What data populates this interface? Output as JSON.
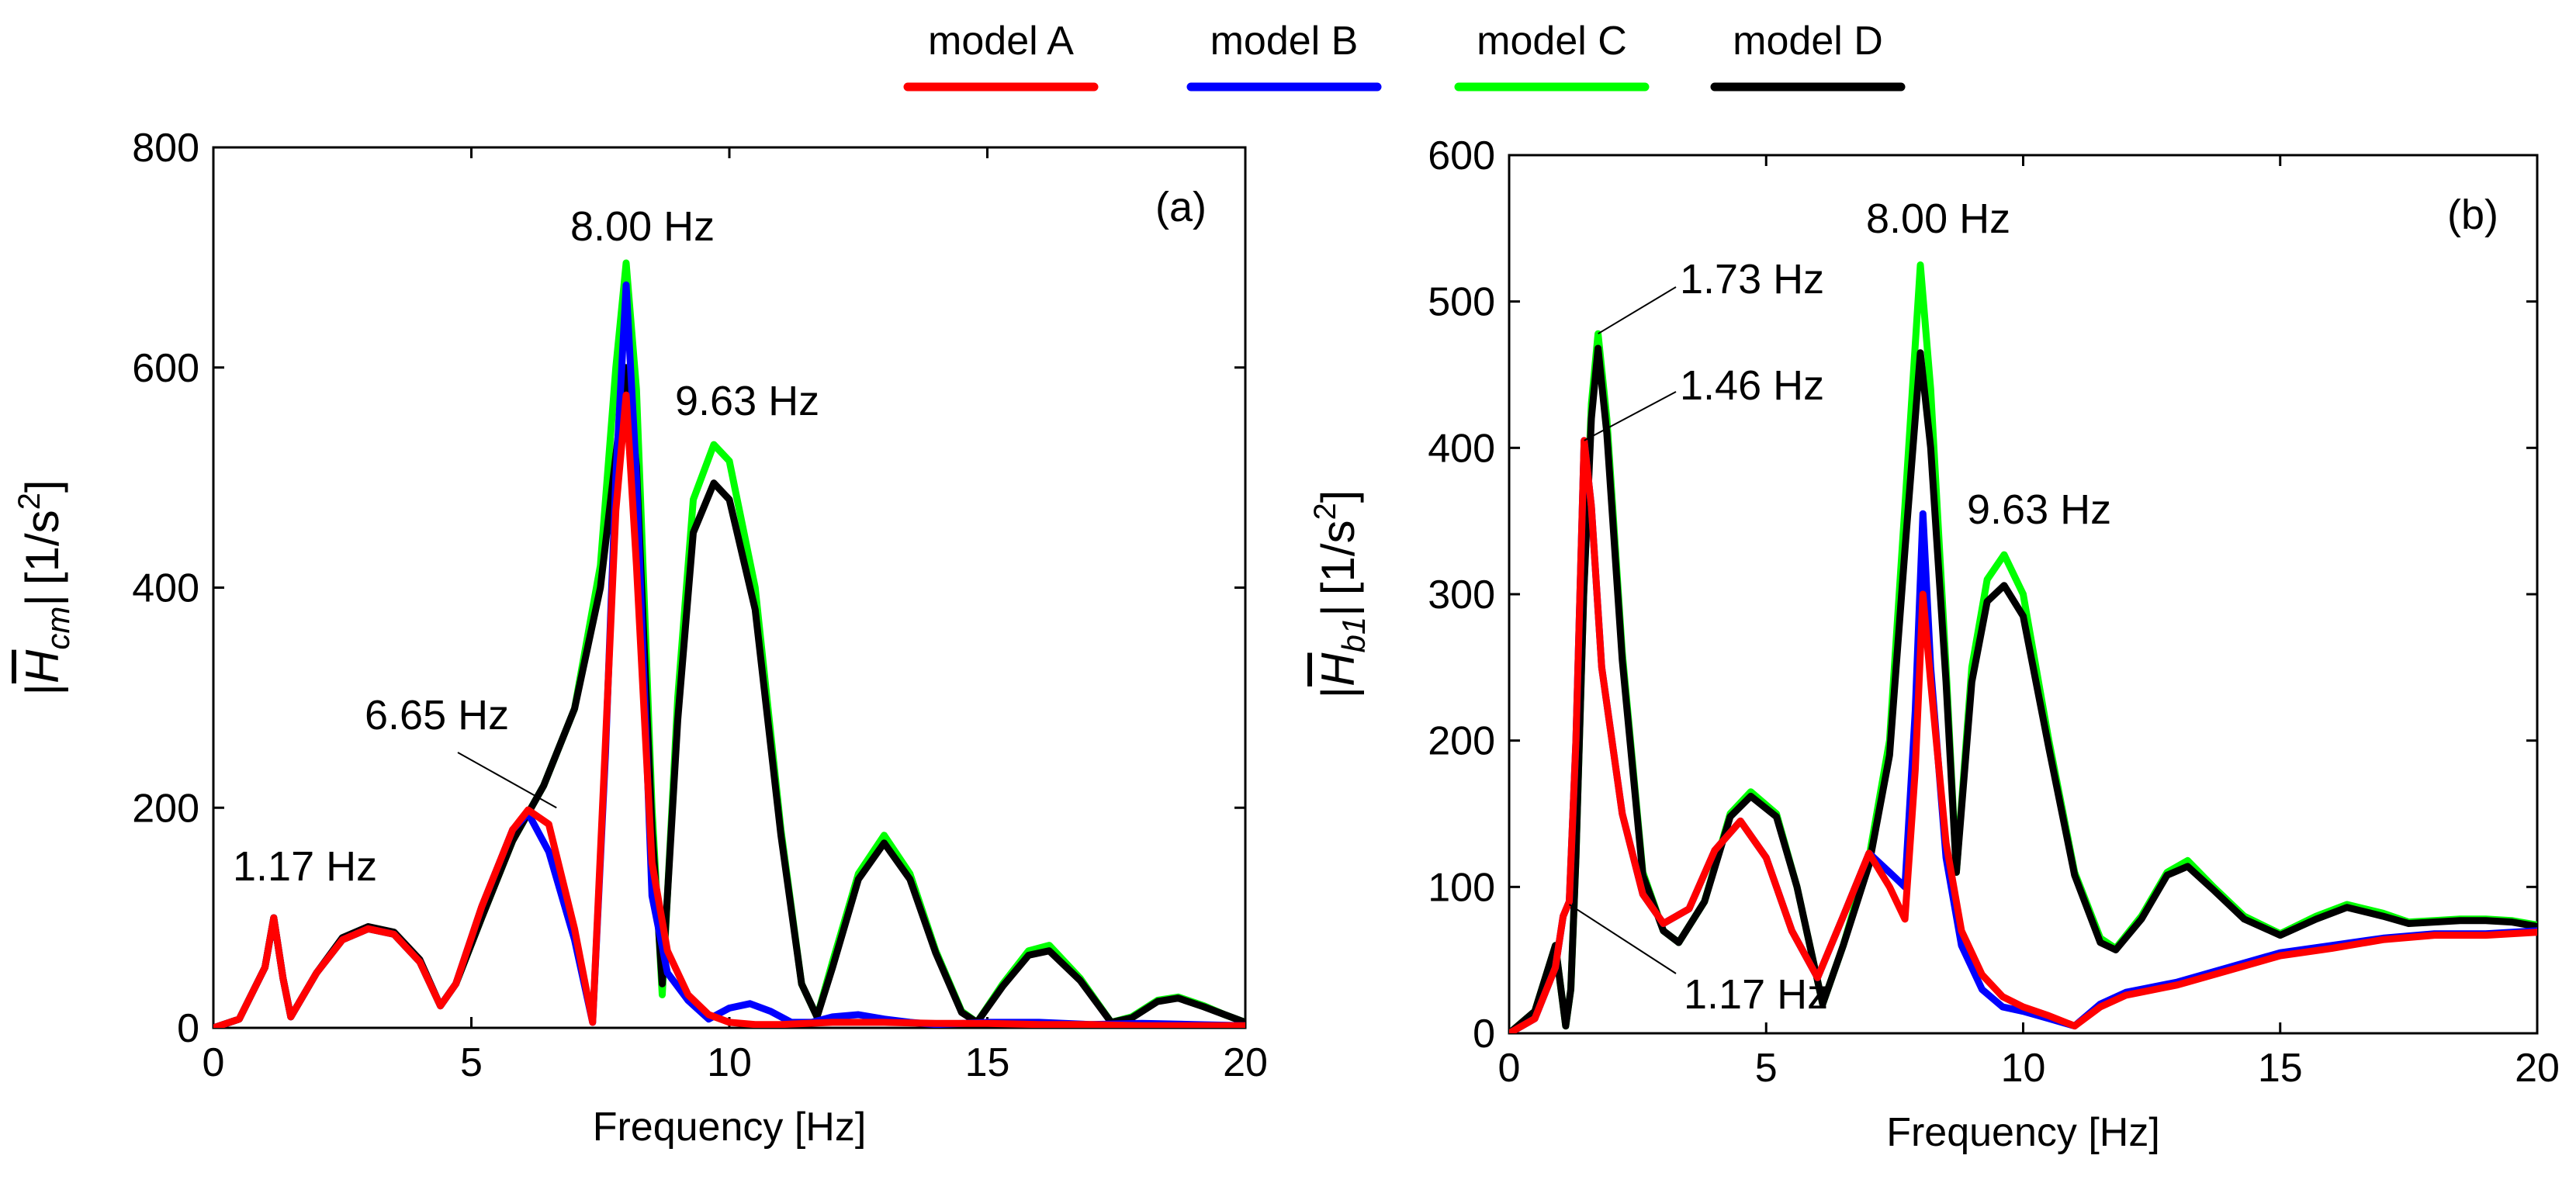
{
  "legend": {
    "placement": "top-center",
    "items": [
      {
        "label": "model A",
        "color": "#ff0000"
      },
      {
        "label": "model B",
        "color": "#0000ff"
      },
      {
        "label": "model C",
        "color": "#00ff00"
      },
      {
        "label": "model D",
        "color": "#000000"
      }
    ]
  },
  "chart_data": [
    {
      "type": "line",
      "panel_label": "(a)",
      "xlabel": "Frequency [Hz]",
      "ylabel": {
        "prefix": "|",
        "symbol": "H",
        "subscript": "cm",
        "suffix": "|",
        "unit": "[1/s",
        "unit_power": "2",
        "unit_close": "]"
      },
      "xlim": [
        0,
        20
      ],
      "ylim": [
        0,
        800
      ],
      "xticks": [
        0,
        5,
        10,
        15,
        20
      ],
      "yticks": [
        0,
        200,
        400,
        600,
        800
      ],
      "grid": false,
      "annotations": [
        {
          "text": "1.17 Hz",
          "x": 1.17,
          "y": 97
        },
        {
          "text": "6.65 Hz",
          "x": 6.65,
          "y": 200
        },
        {
          "text": "8.00 Hz",
          "x": 8.0,
          "y": 695
        },
        {
          "text": "9.63 Hz",
          "x": 9.63,
          "y": 530
        }
      ],
      "series": [
        {
          "name": "model C",
          "color": "#00ff00",
          "x": [
            0,
            0.5,
            1.0,
            1.17,
            1.35,
            1.5,
            2.0,
            2.5,
            3.0,
            3.5,
            4.0,
            4.4,
            4.7,
            5.2,
            5.8,
            6.4,
            7.0,
            7.5,
            7.8,
            8.0,
            8.2,
            8.5,
            8.7,
            9.0,
            9.3,
            9.7,
            10.0,
            10.5,
            11.0,
            11.4,
            11.7,
            12.0,
            12.5,
            13.0,
            13.5,
            14.0,
            14.5,
            14.8,
            15.3,
            15.8,
            16.2,
            16.8,
            17.4,
            17.8,
            18.3,
            18.7,
            19.2,
            19.6,
            20.0
          ],
          "y": [
            0,
            8,
            55,
            100,
            45,
            10,
            50,
            80,
            90,
            85,
            60,
            20,
            40,
            100,
            170,
            220,
            290,
            420,
            600,
            695,
            580,
            200,
            30,
            300,
            480,
            530,
            515,
            400,
            180,
            40,
            10,
            60,
            140,
            175,
            140,
            70,
            15,
            5,
            40,
            70,
            75,
            45,
            5,
            10,
            25,
            28,
            20,
            12,
            5
          ]
        },
        {
          "name": "model D",
          "color": "#000000",
          "x": [
            0,
            0.5,
            1.0,
            1.17,
            1.35,
            1.5,
            2.0,
            2.5,
            3.0,
            3.5,
            4.0,
            4.4,
            4.7,
            5.2,
            5.8,
            6.4,
            7.0,
            7.5,
            7.8,
            8.0,
            8.2,
            8.5,
            8.7,
            9.0,
            9.3,
            9.7,
            10.0,
            10.5,
            11.0,
            11.4,
            11.7,
            12.0,
            12.5,
            13.0,
            13.5,
            14.0,
            14.5,
            14.8,
            15.3,
            15.8,
            16.2,
            16.8,
            17.4,
            17.8,
            18.3,
            18.7,
            19.2,
            19.6,
            20.0
          ],
          "y": [
            0,
            8,
            55,
            100,
            45,
            10,
            50,
            82,
            92,
            87,
            62,
            20,
            40,
            100,
            170,
            220,
            290,
            400,
            520,
            600,
            510,
            180,
            40,
            280,
            450,
            495,
            480,
            380,
            175,
            40,
            10,
            55,
            135,
            168,
            135,
            68,
            14,
            5,
            38,
            66,
            70,
            43,
            5,
            9,
            24,
            27,
            19,
            12,
            5
          ]
        },
        {
          "name": "model B",
          "color": "#0000ff",
          "x": [
            0,
            0.5,
            1.0,
            1.17,
            1.35,
            1.5,
            2.0,
            2.5,
            3.0,
            3.5,
            4.0,
            4.4,
            4.7,
            5.2,
            5.8,
            6.1,
            6.5,
            7.0,
            7.35,
            7.6,
            7.8,
            8.0,
            8.2,
            8.5,
            8.8,
            9.2,
            9.6,
            10.0,
            10.4,
            10.8,
            11.2,
            11.6,
            12.0,
            12.5,
            13.0,
            13.5,
            14.0,
            15.0,
            16.0,
            17.0,
            18.0,
            19.0,
            20.0
          ],
          "y": [
            0,
            8,
            55,
            100,
            45,
            10,
            50,
            80,
            90,
            85,
            60,
            20,
            40,
            110,
            180,
            195,
            160,
            80,
            5,
            250,
            500,
            675,
            500,
            120,
            50,
            25,
            8,
            18,
            22,
            15,
            5,
            5,
            10,
            12,
            8,
            5,
            3,
            5,
            5,
            3,
            4,
            3,
            2
          ]
        },
        {
          "name": "model A",
          "color": "#ff0000",
          "x": [
            0,
            0.5,
            1.0,
            1.17,
            1.35,
            1.5,
            2.0,
            2.5,
            3.0,
            3.5,
            4.0,
            4.4,
            4.7,
            5.2,
            5.8,
            6.1,
            6.5,
            7.0,
            7.35,
            7.6,
            7.8,
            8.0,
            8.2,
            8.5,
            8.8,
            9.2,
            9.6,
            10.0,
            10.5,
            11.0,
            12.0,
            13.0,
            14.0,
            15.0,
            16.0,
            17.0,
            18.0,
            19.0,
            20.0
          ],
          "y": [
            0,
            8,
            55,
            100,
            45,
            10,
            50,
            80,
            90,
            85,
            60,
            20,
            40,
            110,
            180,
            198,
            185,
            90,
            5,
            260,
            470,
            575,
            420,
            150,
            70,
            30,
            12,
            5,
            3,
            3,
            5,
            5,
            4,
            4,
            3,
            3,
            2,
            2,
            2
          ]
        }
      ]
    },
    {
      "type": "line",
      "panel_label": "(b)",
      "xlabel": "Frequency [Hz]",
      "ylabel": {
        "prefix": "|",
        "symbol": "H",
        "subscript": "b1",
        "suffix": "|",
        "unit": "[1/s",
        "unit_power": "2",
        "unit_close": "]"
      },
      "xlim": [
        0,
        20
      ],
      "ylim": [
        0,
        600
      ],
      "xticks": [
        0,
        5,
        10,
        15,
        20
      ],
      "yticks": [
        0,
        100,
        200,
        300,
        400,
        500,
        600
      ],
      "grid": false,
      "annotations": [
        {
          "text": "1.17 Hz",
          "x": 1.17,
          "y": 88
        },
        {
          "text": "1.46 Hz",
          "x": 1.46,
          "y": 405
        },
        {
          "text": "1.73 Hz",
          "x": 1.73,
          "y": 478
        },
        {
          "text": "8.00 Hz",
          "x": 8.0,
          "y": 525
        },
        {
          "text": "9.63 Hz",
          "x": 9.63,
          "y": 325
        }
      ],
      "series": [
        {
          "name": "model C",
          "color": "#00ff00",
          "x": [
            0,
            0.5,
            0.9,
            1.1,
            1.2,
            1.3,
            1.45,
            1.6,
            1.73,
            1.9,
            2.2,
            2.6,
            3.0,
            3.3,
            3.8,
            4.3,
            4.7,
            5.2,
            5.6,
            6.1,
            6.5,
            7.0,
            7.4,
            7.7,
            8.0,
            8.2,
            8.5,
            8.7,
            9.0,
            9.3,
            9.63,
            10.0,
            10.5,
            11.0,
            11.5,
            11.8,
            12.3,
            12.8,
            13.2,
            13.7,
            14.3,
            15.0,
            15.7,
            16.3,
            17.0,
            17.5,
            18.0,
            18.5,
            19.0,
            19.5,
            20.0
          ],
          "y": [
            0,
            15,
            60,
            5,
            30,
            120,
            300,
            430,
            478,
            420,
            260,
            110,
            70,
            62,
            90,
            150,
            165,
            150,
            100,
            20,
            60,
            120,
            200,
            360,
            525,
            440,
            250,
            110,
            250,
            310,
            327,
            300,
            200,
            110,
            65,
            58,
            80,
            110,
            118,
            100,
            80,
            68,
            80,
            88,
            82,
            76,
            77,
            78,
            78,
            77,
            74
          ]
        },
        {
          "name": "model D",
          "color": "#000000",
          "x": [
            0,
            0.5,
            0.9,
            1.1,
            1.2,
            1.3,
            1.45,
            1.6,
            1.73,
            1.9,
            2.2,
            2.6,
            3.0,
            3.3,
            3.8,
            4.3,
            4.7,
            5.2,
            5.6,
            6.1,
            6.5,
            7.0,
            7.4,
            7.7,
            8.0,
            8.2,
            8.5,
            8.7,
            9.0,
            9.3,
            9.63,
            10.0,
            10.5,
            11.0,
            11.5,
            11.8,
            12.3,
            12.8,
            13.2,
            13.7,
            14.3,
            15.0,
            15.7,
            16.3,
            17.0,
            17.5,
            18.0,
            18.5,
            19.0,
            19.5,
            20.0
          ],
          "y": [
            0,
            15,
            60,
            5,
            30,
            120,
            300,
            420,
            468,
            410,
            255,
            108,
            70,
            62,
            90,
            148,
            162,
            148,
            100,
            20,
            60,
            115,
            190,
            330,
            465,
            400,
            240,
            110,
            240,
            295,
            306,
            285,
            195,
            108,
            62,
            57,
            78,
            108,
            114,
            98,
            78,
            67,
            78,
            86,
            80,
            75,
            76,
            77,
            77,
            76,
            73
          ]
        },
        {
          "name": "model B",
          "color": "#0000ff",
          "x": [
            0,
            0.5,
            0.9,
            1.05,
            1.17,
            1.3,
            1.46,
            1.6,
            1.8,
            2.2,
            2.6,
            3.0,
            3.5,
            4.0,
            4.5,
            5.0,
            5.5,
            6.0,
            6.5,
            7.0,
            7.4,
            7.7,
            7.9,
            8.05,
            8.2,
            8.5,
            8.8,
            9.2,
            9.6,
            10.0,
            10.5,
            11.0,
            11.5,
            12.0,
            13.0,
            14.0,
            15.0,
            16.0,
            17.0,
            18.0,
            19.0,
            20.0
          ],
          "y": [
            0,
            10,
            45,
            80,
            90,
            200,
            405,
            360,
            250,
            150,
            95,
            75,
            85,
            125,
            145,
            120,
            70,
            38,
            80,
            123,
            110,
            100,
            220,
            355,
            250,
            120,
            60,
            30,
            18,
            15,
            10,
            5,
            20,
            28,
            35,
            45,
            55,
            60,
            65,
            68,
            68,
            70
          ]
        },
        {
          "name": "model A",
          "color": "#ff0000",
          "x": [
            0,
            0.5,
            0.9,
            1.05,
            1.17,
            1.3,
            1.46,
            1.6,
            1.8,
            2.2,
            2.6,
            3.0,
            3.5,
            4.0,
            4.5,
            5.0,
            5.5,
            6.0,
            6.5,
            7.0,
            7.4,
            7.7,
            7.9,
            8.05,
            8.2,
            8.5,
            8.8,
            9.2,
            9.6,
            10.0,
            10.5,
            11.0,
            11.5,
            12.0,
            13.0,
            14.0,
            15.0,
            16.0,
            17.0,
            18.0,
            19.0,
            20.0
          ],
          "y": [
            0,
            10,
            45,
            80,
            90,
            200,
            405,
            360,
            250,
            150,
            95,
            75,
            85,
            125,
            145,
            120,
            70,
            38,
            80,
            123,
            100,
            78,
            180,
            300,
            240,
            130,
            70,
            40,
            25,
            18,
            12,
            5,
            18,
            26,
            33,
            43,
            53,
            58,
            64,
            67,
            67,
            69
          ]
        }
      ]
    }
  ]
}
